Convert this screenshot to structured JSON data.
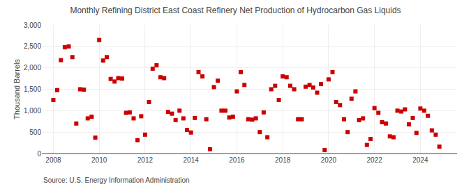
{
  "chart_data": {
    "type": "scatter",
    "title": "Monthly Refining District East Coast Refinery Net Production of Hydrocarbon Gas Liquids",
    "ylabel": "Thousand Barrels",
    "annotations": [
      "Source: U.S. Energy Information Administration"
    ],
    "color": "#cc0000",
    "marker": "square",
    "grid": true,
    "xlim": [
      2007.5,
      2025.6
    ],
    "xticks": [
      2008,
      2010,
      2012,
      2014,
      2016,
      2018,
      2020,
      2022,
      2024
    ],
    "ylim": [
      0,
      3000
    ],
    "yticks": [
      0,
      500,
      {
        "value": 1000,
        "label": "1,000"
      },
      {
        "value": 1500,
        "label": "1,500"
      },
      {
        "value": 2000,
        "label": "2,000"
      },
      {
        "value": 2500,
        "label": "2,500"
      },
      {
        "value": 3000,
        "label": "3,000"
      }
    ],
    "x": [
      2008.0,
      2008.17,
      2008.33,
      2008.5,
      2008.67,
      2008.83,
      2009.0,
      2009.17,
      2009.33,
      2009.5,
      2009.67,
      2009.83,
      2010.0,
      2010.17,
      2010.33,
      2010.5,
      2010.67,
      2010.83,
      2011.0,
      2011.17,
      2011.33,
      2011.5,
      2011.67,
      2011.83,
      2012.0,
      2012.17,
      2012.33,
      2012.5,
      2012.67,
      2012.83,
      2013.0,
      2013.17,
      2013.33,
      2013.5,
      2013.67,
      2013.83,
      2014.0,
      2014.17,
      2014.33,
      2014.5,
      2014.67,
      2014.83,
      2015.0,
      2015.17,
      2015.33,
      2015.5,
      2015.67,
      2015.83,
      2016.0,
      2016.17,
      2016.33,
      2016.5,
      2016.67,
      2016.83,
      2017.0,
      2017.17,
      2017.33,
      2017.5,
      2017.67,
      2017.83,
      2018.0,
      2018.17,
      2018.33,
      2018.5,
      2018.67,
      2018.83,
      2019.0,
      2019.17,
      2019.33,
      2019.5,
      2019.67,
      2019.83,
      2020.0,
      2020.17,
      2020.33,
      2020.5,
      2020.67,
      2020.83,
      2021.0,
      2021.17,
      2021.33,
      2021.5,
      2021.67,
      2021.83,
      2022.0,
      2022.17,
      2022.33,
      2022.5,
      2022.67,
      2022.83,
      2023.0,
      2023.17,
      2023.33,
      2023.5,
      2023.67,
      2023.83,
      2024.0,
      2024.17,
      2024.33,
      2024.5,
      2024.67,
      2024.83
    ],
    "values": [
      1250,
      1480,
      2180,
      2480,
      2500,
      2250,
      700,
      1500,
      1490,
      820,
      860,
      370,
      2650,
      2170,
      2250,
      1740,
      1680,
      1760,
      1750,
      950,
      960,
      820,
      310,
      870,
      440,
      1200,
      1980,
      2060,
      1780,
      1760,
      970,
      930,
      780,
      1000,
      820,
      550,
      490,
      830,
      1900,
      1800,
      800,
      100,
      1550,
      1700,
      1000,
      1000,
      840,
      860,
      1450,
      1900,
      1600,
      800,
      790,
      820,
      500,
      960,
      380,
      1500,
      1580,
      1250,
      1800,
      1780,
      1580,
      1500,
      800,
      800,
      1560,
      1600,
      1540,
      1420,
      1620,
      80,
      1730,
      1900,
      1200,
      1130,
      800,
      500,
      1280,
      1450,
      780,
      820,
      200,
      340,
      1060,
      950,
      730,
      700,
      400,
      380,
      1000,
      980,
      1030,
      680,
      830,
      480,
      1050,
      1000,
      880,
      540,
      440,
      160
    ]
  }
}
